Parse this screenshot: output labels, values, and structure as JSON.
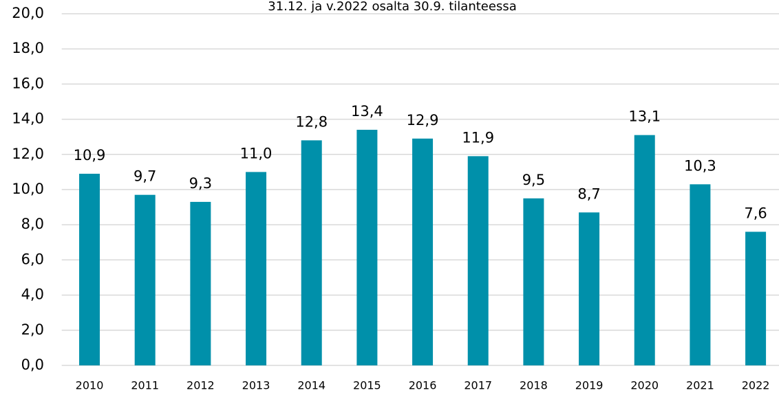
{
  "chart_data": {
    "type": "bar",
    "subtitle": "31.12. ja v.2022 osalta 30.9. tilanteessa",
    "categories": [
      "2010",
      "2011",
      "2012",
      "2013",
      "2014",
      "2015",
      "2016",
      "2017",
      "2018",
      "2019",
      "2020",
      "2021",
      "2022"
    ],
    "values": [
      10.9,
      9.7,
      9.3,
      11.0,
      12.8,
      13.4,
      12.9,
      11.9,
      9.5,
      8.7,
      13.1,
      10.3,
      7.6
    ],
    "value_labels": [
      "10,9",
      "9,7",
      "9,3",
      "11,0",
      "12,8",
      "13,4",
      "12,9",
      "11,9",
      "9,5",
      "8,7",
      "13,1",
      "10,3",
      "7,6"
    ],
    "color": "#0090aa",
    "ylim": [
      0,
      20
    ],
    "yticks": [
      {
        "value": 0,
        "label": "0,0"
      },
      {
        "value": 2,
        "label": "2,0"
      },
      {
        "value": 4,
        "label": "4,0"
      },
      {
        "value": 6,
        "label": "6,0"
      },
      {
        "value": 8,
        "label": "8,0"
      },
      {
        "value": 10,
        "label": "10,0"
      },
      {
        "value": 12,
        "label": "12,0"
      },
      {
        "value": 14,
        "label": "14,0"
      },
      {
        "value": 16,
        "label": "16,0"
      },
      {
        "value": 18,
        "label": "18,0"
      },
      {
        "value": 20,
        "label": "20,0"
      }
    ],
    "grid": true
  }
}
